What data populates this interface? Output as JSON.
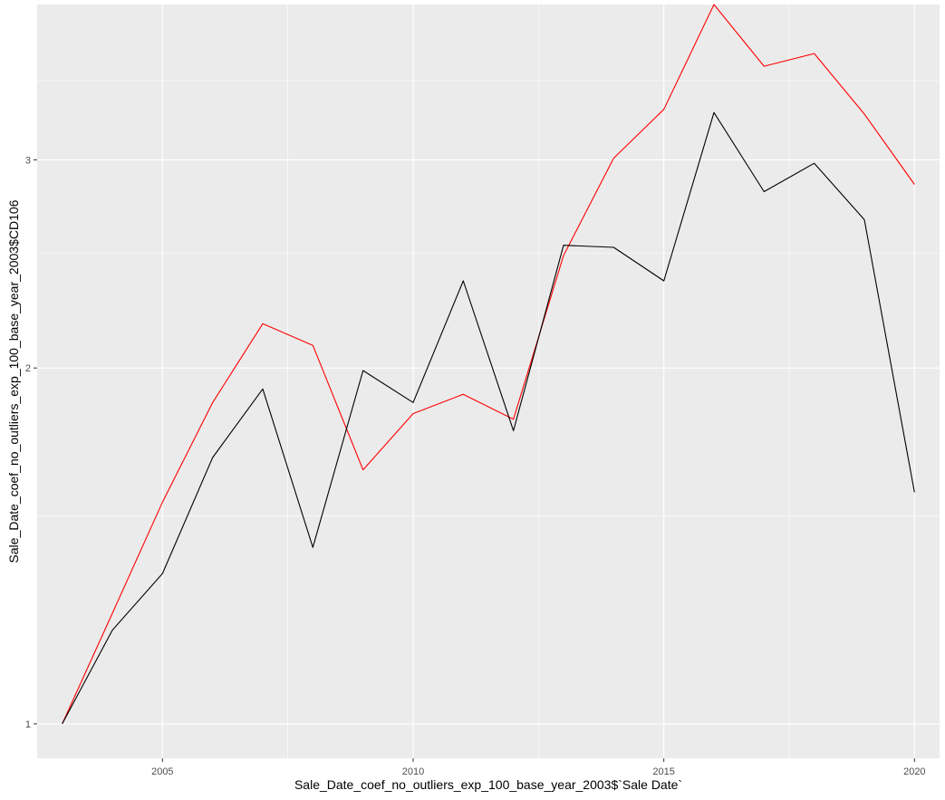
{
  "chart_data": {
    "type": "line",
    "xlabel": "Sale_Date_coef_no_outliers_exp_100_base_year_2003$`Sale Date`",
    "ylabel": "Sale_Date_coef_no_outliers_exp_100_base_year_2003$CD106",
    "scale_y": "log",
    "xlim": [
      2002.5,
      2020.5
    ],
    "ylim": [
      0.935,
      4.06
    ],
    "x_ticks": [
      2005,
      2010,
      2015,
      2020
    ],
    "y_ticks": [
      1,
      2,
      3
    ],
    "x_tick_labels": [
      "2005",
      "2010",
      "2015",
      "2020"
    ],
    "y_tick_labels": [
      "1",
      "2",
      "3"
    ],
    "grid": true,
    "background": "#EBEBEB",
    "gridline_color": "#FFFFFF",
    "legend": "none",
    "x": [
      2003,
      2004,
      2005,
      2006,
      2007,
      2008,
      2009,
      2010,
      2011,
      2012,
      2013,
      2014,
      2015,
      2016,
      2017,
      2018,
      2019,
      2020
    ],
    "series": [
      {
        "color": "#FF0000",
        "values": [
          1.0,
          1.24,
          1.54,
          1.87,
          2.18,
          2.09,
          1.64,
          1.83,
          1.9,
          1.81,
          2.49,
          3.01,
          3.31,
          4.06,
          3.6,
          3.69,
          3.28,
          2.86
        ]
      },
      {
        "color": "#000000",
        "values": [
          1.0,
          1.2,
          1.34,
          1.68,
          1.92,
          1.41,
          1.99,
          1.87,
          2.37,
          1.77,
          2.54,
          2.53,
          2.37,
          3.29,
          2.82,
          2.98,
          2.67,
          1.57
        ]
      }
    ]
  }
}
